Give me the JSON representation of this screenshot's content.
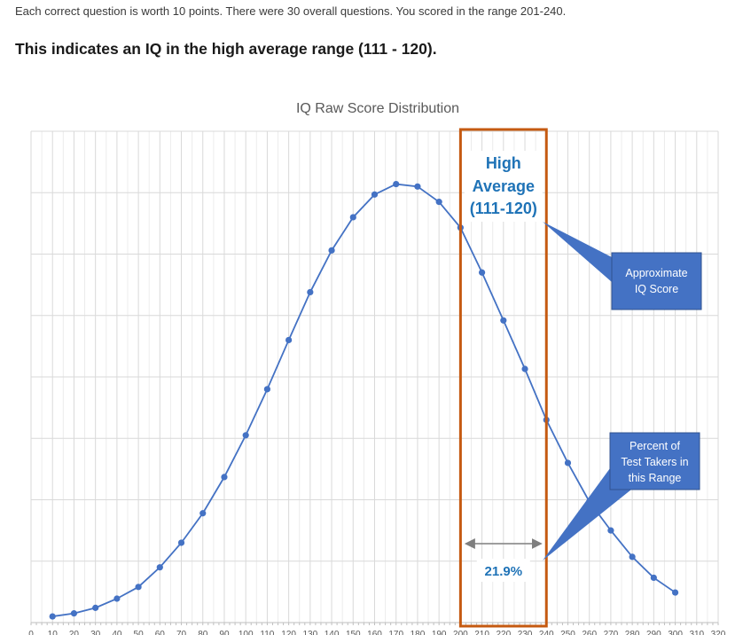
{
  "intro_text": "Each correct question is worth 10 points.  There were 30 overall questions. You scored in the range 201-240.",
  "headline_text": "This indicates an IQ in the high average range (111 - 120).",
  "chart_data": {
    "type": "line",
    "title": "IQ Raw Score Distribution",
    "xlabel": "",
    "ylabel": "",
    "xlim": [
      0,
      320
    ],
    "ylim": [
      0,
      8
    ],
    "x_ticks": [
      0,
      10,
      20,
      30,
      40,
      50,
      60,
      70,
      80,
      90,
      100,
      110,
      120,
      130,
      140,
      150,
      160,
      170,
      180,
      190,
      200,
      210,
      220,
      230,
      240,
      250,
      260,
      270,
      280,
      290,
      300,
      310,
      320
    ],
    "y_gridlines": [
      1,
      2,
      3,
      4,
      5,
      6,
      7,
      8
    ],
    "grid": true,
    "series": [
      {
        "color": "#4472c4",
        "x": [
          10,
          20,
          30,
          40,
          50,
          60,
          70,
          80,
          90,
          100,
          110,
          120,
          130,
          140,
          150,
          160,
          170,
          180,
          190,
          200,
          210,
          220,
          230,
          240,
          250,
          260,
          270,
          280,
          290,
          300
        ],
        "y": [
          0.1,
          0.15,
          0.24,
          0.39,
          0.58,
          0.9,
          1.3,
          1.78,
          2.37,
          3.05,
          3.8,
          4.6,
          5.38,
          6.06,
          6.6,
          6.97,
          7.14,
          7.1,
          6.85,
          6.43,
          5.7,
          4.92,
          4.13,
          3.3,
          2.6,
          1.97,
          1.5,
          1.07,
          0.73,
          0.49
        ]
      }
    ],
    "highlight": {
      "x_range": [
        200,
        240
      ],
      "border_color": "#c55a11",
      "label_lines": [
        "High",
        "Average",
        "(111-120)"
      ],
      "label_color": "#1f73b7",
      "percent_label": "21.9%"
    },
    "callouts": [
      {
        "lines": [
          "Approximate",
          "IQ Score"
        ],
        "fill": "#4472c4",
        "text_color": "#ffffff"
      },
      {
        "lines": [
          "Percent of",
          "Test Takers in",
          "this Range"
        ],
        "fill": "#4472c4",
        "text_color": "#ffffff"
      }
    ]
  }
}
